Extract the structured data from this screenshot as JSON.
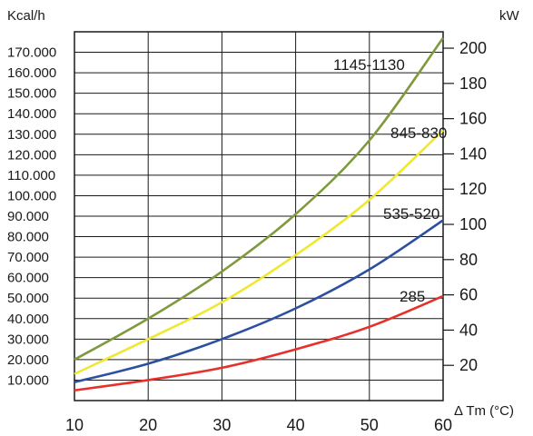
{
  "chart_data": {
    "type": "line",
    "left_axis_label": "Kcal/h",
    "right_axis_label": "kW",
    "xlabel": "Δ Tm (°C)",
    "xlim": [
      10,
      60
    ],
    "ylim_left": [
      0,
      180000
    ],
    "ylim_right": [
      0,
      209.3
    ],
    "x_ticks": [
      "10",
      "20",
      "30",
      "40",
      "50",
      "60"
    ],
    "y_ticks_left": [
      "10.000",
      "20.000",
      "30.000",
      "40.000",
      "50.000",
      "60.000",
      "70.000",
      "80.000",
      "90.000",
      "100.000",
      "110.000",
      "120.000",
      "130.000",
      "140.000",
      "150.000",
      "160.000",
      "170.000"
    ],
    "y_ticks_right": [
      "20",
      "40",
      "60",
      "80",
      "100",
      "120",
      "140",
      "160",
      "180",
      "200"
    ],
    "series": [
      {
        "name": "1145-1130",
        "color": "#7f9a3c",
        "x": [
          10,
          20,
          30,
          40,
          50,
          60
        ],
        "y": [
          20000,
          40000,
          63000,
          91000,
          127000,
          177000
        ]
      },
      {
        "name": "845-830",
        "color": "#f0e830",
        "x": [
          10,
          20,
          30,
          40,
          50,
          60
        ],
        "y": [
          13000,
          30000,
          48000,
          71000,
          98000,
          132000
        ]
      },
      {
        "name": "535-520",
        "color": "#2d4fa0",
        "x": [
          10,
          20,
          30,
          40,
          50,
          60
        ],
        "y": [
          9000,
          18000,
          30000,
          45000,
          64000,
          88000
        ]
      },
      {
        "name": "285",
        "color": "#e8302a",
        "x": [
          10,
          20,
          30,
          40,
          50,
          60
        ],
        "y": [
          5000,
          10000,
          16000,
          25000,
          36000,
          51000
        ]
      }
    ]
  }
}
